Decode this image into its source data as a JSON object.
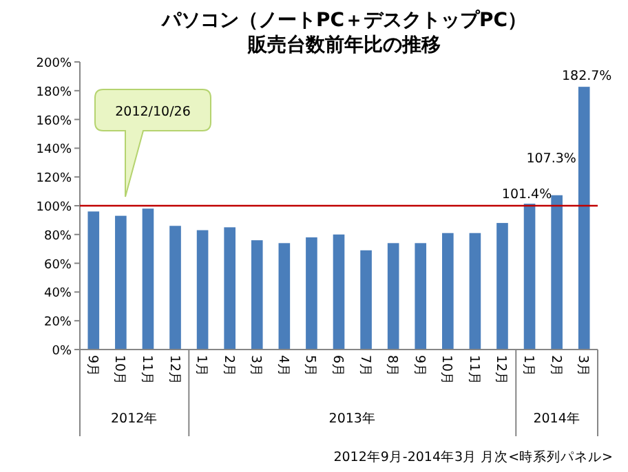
{
  "chart_data": {
    "type": "bar",
    "title": "パソコン（ノートPC＋デスクトップPC）",
    "subtitle": "販売台数前年比の推移",
    "categories": [
      "9月",
      "10月",
      "11月",
      "12月",
      "1月",
      "2月",
      "3月",
      "4月",
      "5月",
      "6月",
      "7月",
      "8月",
      "9月",
      "10月",
      "11月",
      "12月",
      "1月",
      "2月",
      "3月"
    ],
    "values": [
      96,
      93,
      98,
      86,
      83,
      85,
      76,
      74,
      78,
      80,
      69,
      74,
      74,
      81,
      81,
      88,
      101.4,
      107.3,
      182.7
    ],
    "value_labels": [
      null,
      null,
      null,
      null,
      null,
      null,
      null,
      null,
      null,
      null,
      null,
      null,
      null,
      null,
      null,
      null,
      "101.4%",
      "107.3%",
      "182.7%"
    ],
    "color": "#4a7ebb",
    "ylim": [
      0,
      200
    ],
    "yticks": [
      {
        "value": 0,
        "label": "0%"
      },
      {
        "value": 20,
        "label": "20%"
      },
      {
        "value": 40,
        "label": "40%"
      },
      {
        "value": 60,
        "label": "60%"
      },
      {
        "value": 80,
        "label": "80%"
      },
      {
        "value": 100,
        "label": "100%"
      },
      {
        "value": 120,
        "label": "120%"
      },
      {
        "value": 140,
        "label": "140%"
      },
      {
        "value": 160,
        "label": "160%"
      },
      {
        "value": 180,
        "label": "180%"
      },
      {
        "value": 200,
        "label": "200%"
      }
    ],
    "ref_lines": [
      {
        "axis": "y",
        "value": 100,
        "color": "#c00000"
      }
    ],
    "grid": false,
    "annotations": [
      "2012/10/26",
      "2012年",
      "2013年",
      "2014年",
      "2012年9月-2014年3月 月次<時系列パネル>"
    ]
  }
}
